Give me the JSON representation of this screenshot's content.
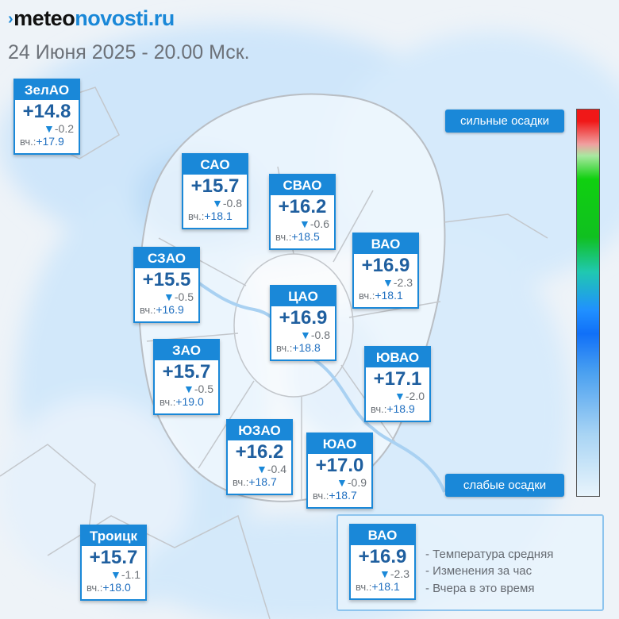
{
  "brand": {
    "mark": "›",
    "part1": "meteo",
    "part2": "novosti.ru"
  },
  "date_title": "24 Июня 2025 - 20.00 Мск.",
  "districts": [
    {
      "name": "ЗелАО",
      "temp": "+14.8",
      "delta": "-0.2",
      "yesterday_label": "вч.:",
      "yesterday": "+17.9"
    },
    {
      "name": "САО",
      "temp": "+15.7",
      "delta": "-0.8",
      "yesterday_label": "вч.:",
      "yesterday": "+18.1"
    },
    {
      "name": "СВАО",
      "temp": "+16.2",
      "delta": "-0.6",
      "yesterday_label": "вч.:",
      "yesterday": "+18.5"
    },
    {
      "name": "ВАО",
      "temp": "+16.9",
      "delta": "-2.3",
      "yesterday_label": "вч.:",
      "yesterday": "+18.1"
    },
    {
      "name": "СЗАО",
      "temp": "+15.5",
      "delta": "-0.5",
      "yesterday_label": "вч.:",
      "yesterday": "+16.9"
    },
    {
      "name": "ЦАО",
      "temp": "+16.9",
      "delta": "-0.8",
      "yesterday_label": "вч.:",
      "yesterday": "+18.8"
    },
    {
      "name": "ЗАО",
      "temp": "+15.7",
      "delta": "-0.5",
      "yesterday_label": "вч.:",
      "yesterday": "+19.0"
    },
    {
      "name": "ЮВАО",
      "temp": "+17.1",
      "delta": "-2.0",
      "yesterday_label": "вч.:",
      "yesterday": "+18.9"
    },
    {
      "name": "ЮЗАО",
      "temp": "+16.2",
      "delta": "-0.4",
      "yesterday_label": "вч.:",
      "yesterday": "+18.7"
    },
    {
      "name": "ЮАО",
      "temp": "+17.0",
      "delta": "-0.9",
      "yesterday_label": "вч.:",
      "yesterday": "+18.7"
    },
    {
      "name": "Троицк",
      "temp": "+15.7",
      "delta": "-1.1",
      "yesterday_label": "вч.:",
      "yesterday": "+18.0"
    }
  ],
  "precip_scale": {
    "high_label": "сильные осадки",
    "low_label": "слабые осадки"
  },
  "legend": {
    "sample": {
      "name": "ВАО",
      "temp": "+16.9",
      "delta": "-2.3",
      "yesterday_label": "вч.:",
      "yesterday": "+18.1"
    },
    "lines": [
      "- Температура средняя",
      "- Изменения за час",
      "- Вчера в это время"
    ]
  },
  "colors": {
    "accent": "#1a88d8",
    "temp_text": "#1f5f9f",
    "high_precip": "#f01818",
    "low_precip": "#e8f4fc"
  },
  "icons": {
    "delta": "down-triangle-icon"
  }
}
